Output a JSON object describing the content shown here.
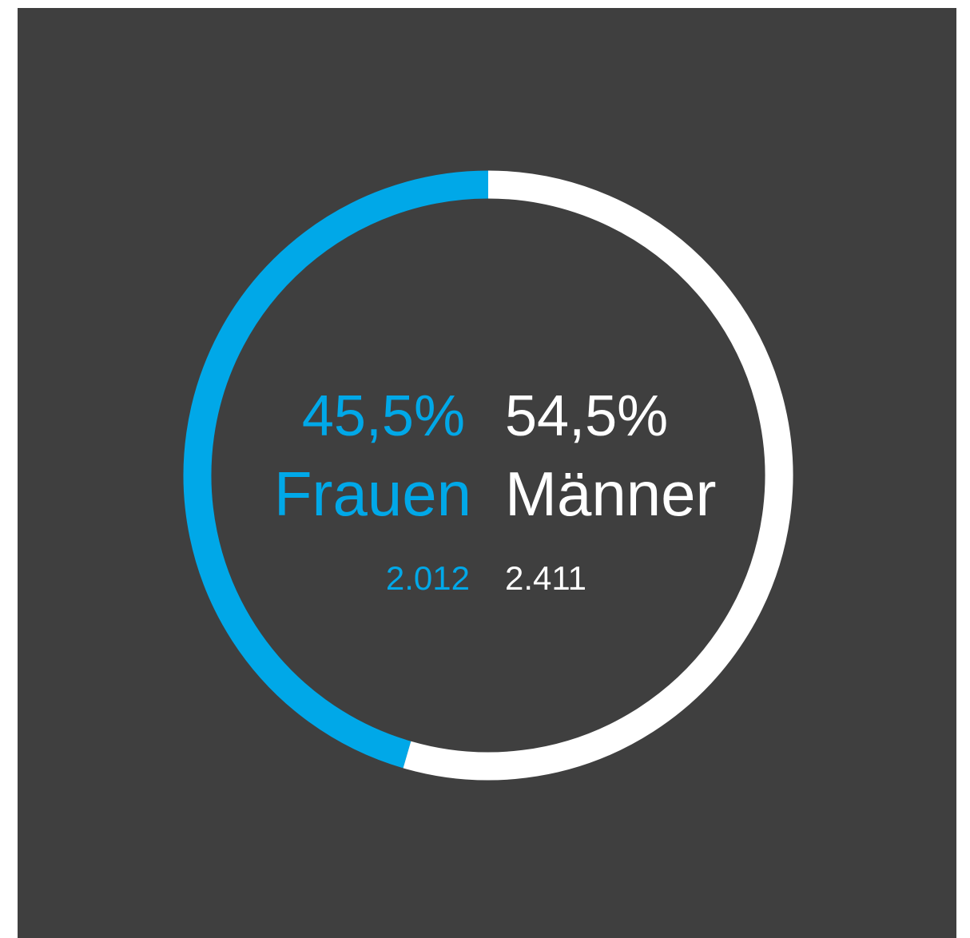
{
  "chart_data": {
    "type": "donut",
    "categories": [
      "Frauen",
      "Männer"
    ],
    "values": [
      45.5,
      54.5
    ],
    "value_labels": [
      "45,5%",
      "54,5%"
    ],
    "counts": [
      2012,
      2411
    ],
    "count_labels": [
      "2.012",
      "2.411"
    ],
    "colors": [
      "#00a8e8",
      "#ffffff"
    ]
  }
}
